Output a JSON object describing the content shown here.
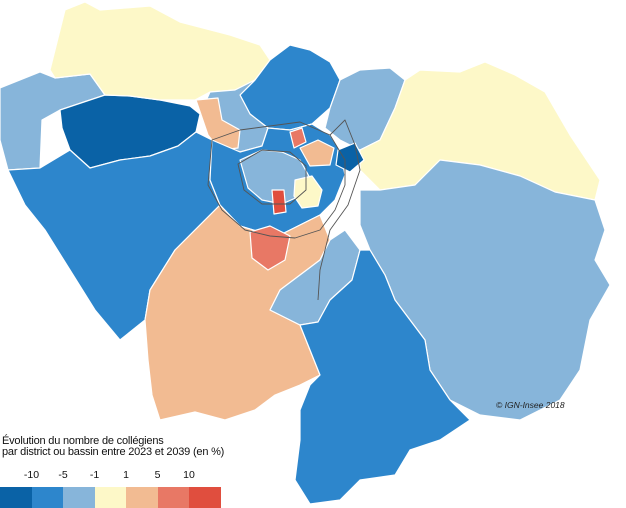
{
  "copyright": "© IGN-Insee 2018",
  "legend": {
    "title_line1": "Évolution du nombre de collégiens",
    "title_line2": "par district ou bassin entre 2023 et 2039 (en %)",
    "ticks": [
      "-10",
      "-5",
      "-1",
      "1",
      "5",
      "10"
    ],
    "classes": [
      {
        "color": "#0a62a6"
      },
      {
        "color": "#2d86cc"
      },
      {
        "color": "#87b5da"
      },
      {
        "color": "#fdf8c8"
      },
      {
        "color": "#f2bb92"
      },
      {
        "color": "#e87865"
      },
      {
        "color": "#e04e3e"
      }
    ]
  }
}
